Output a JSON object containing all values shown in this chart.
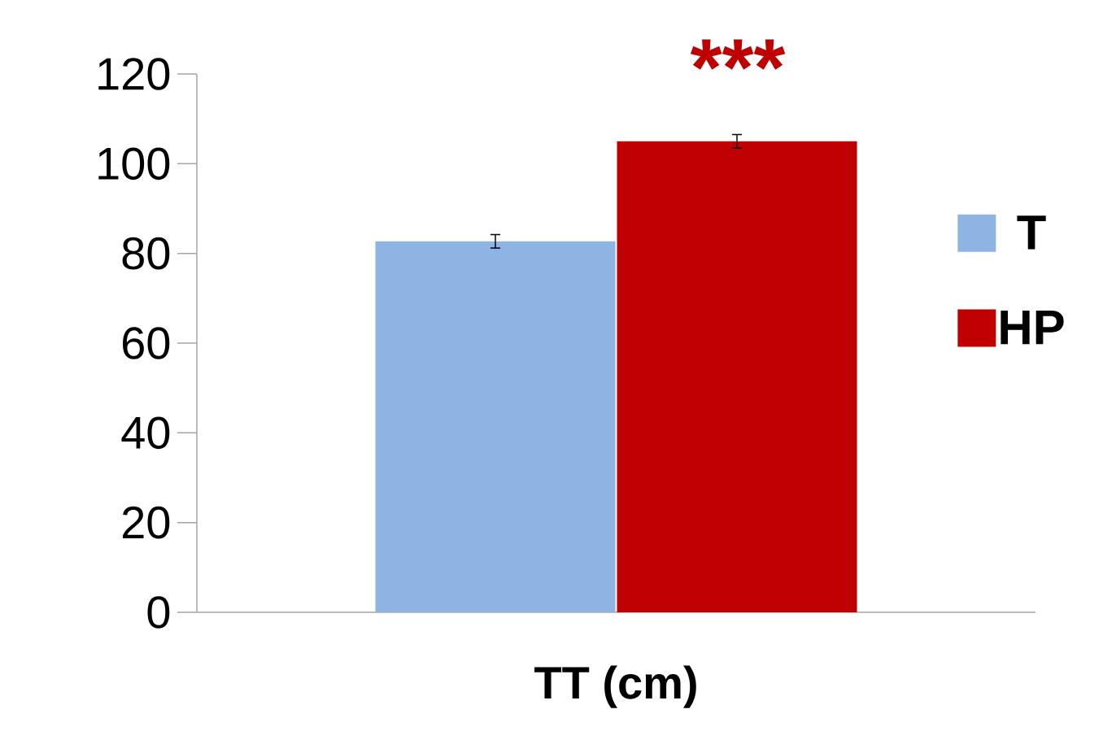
{
  "chart_data": {
    "type": "bar",
    "categories": [
      "TT (cm)"
    ],
    "series": [
      {
        "name": "T",
        "color": "#8eb4e3",
        "values": [
          82.7
        ],
        "errors": [
          1.5
        ]
      },
      {
        "name": "HP",
        "color": "#c00000",
        "values": [
          105
        ],
        "errors": [
          1.5
        ]
      }
    ],
    "ylim": [
      0,
      120
    ],
    "yticks": [
      0,
      20,
      40,
      60,
      80,
      100,
      120
    ],
    "annotations": [
      "***"
    ],
    "legend": "right",
    "grid": false
  }
}
